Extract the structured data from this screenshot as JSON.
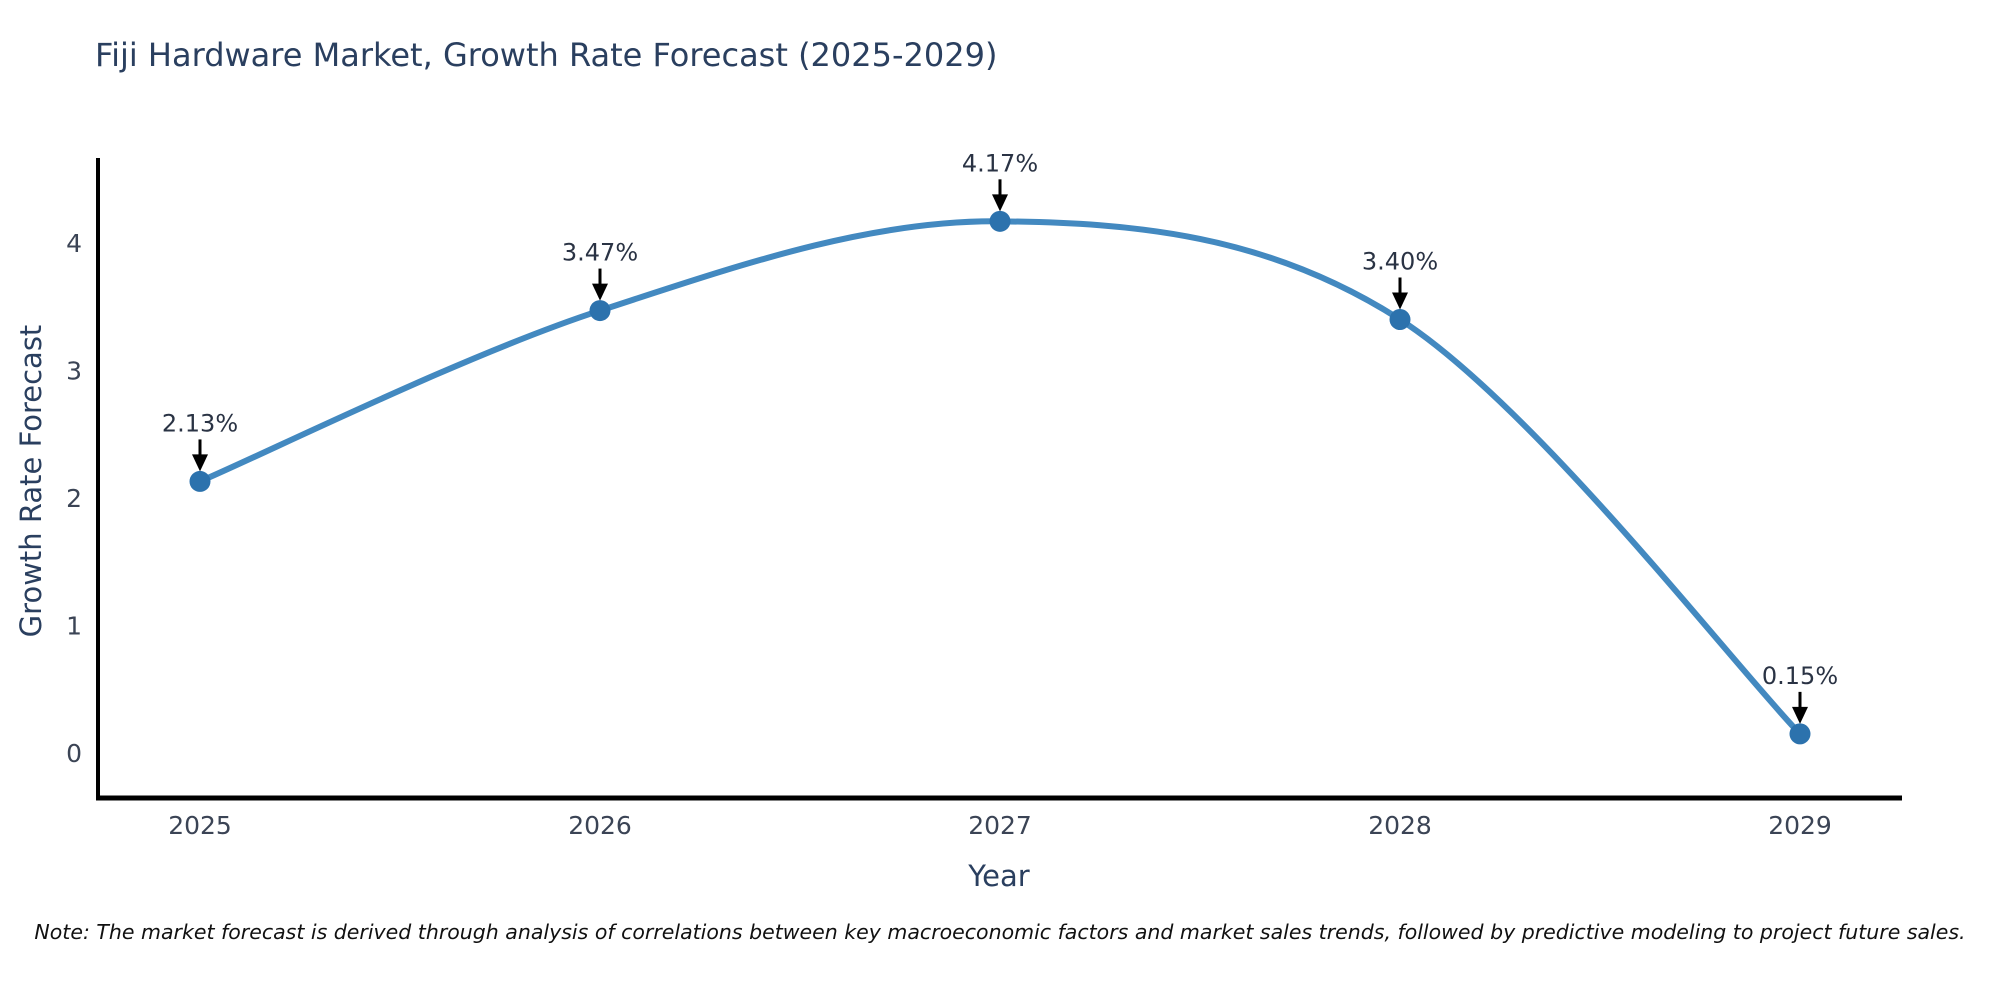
{
  "chart_data": {
    "type": "line",
    "title": "Fiji Hardware Market, Growth Rate Forecast (2025-2029)",
    "xlabel": "Year",
    "ylabel": "Growth Rate Forecast",
    "x": [
      "2025",
      "2026",
      "2027",
      "2028",
      "2029"
    ],
    "values": [
      2.13,
      3.47,
      4.17,
      3.4,
      0.15
    ],
    "point_labels": [
      "2.13%",
      "3.47%",
      "4.17%",
      "3.40%",
      "0.15%"
    ],
    "yticks": [
      0,
      1,
      2,
      3,
      4
    ],
    "ylim": [
      0,
      4.65
    ],
    "line_shape": "spline",
    "grid": false,
    "legend": "none",
    "annotation_style": "label-with-down-arrow",
    "colors": {
      "line": "#4389c0",
      "marker": "#2c72ad",
      "axis": "#000000",
      "arrow": "#000000",
      "title_text": "#2a3f5f",
      "tick_text": "#3b4455",
      "annotation_text": "#2a3344"
    },
    "note": "Note: The market forecast is derived through analysis of correlations between key macroeconomic factors and market sales trends, followed by predictive modeling to project future sales."
  }
}
